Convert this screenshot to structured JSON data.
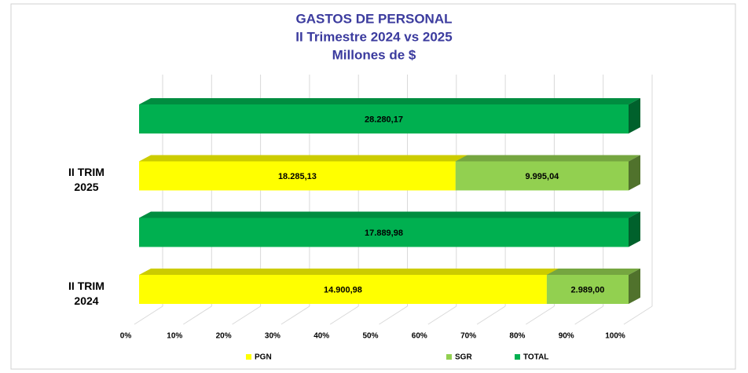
{
  "chart_data": {
    "type": "bar",
    "orientation": "horizontal",
    "stacked": "percent",
    "title": "GASTOS DE PERSONAL",
    "subtitle": [
      "II Trimestre 2024 vs 2025",
      "Millones de $"
    ],
    "categories": [
      "II TRIM 2025",
      "II TRIM 2024"
    ],
    "series": [
      {
        "name": "PGN",
        "color": "#ffff00",
        "values": [
          18285.13,
          14900.98
        ],
        "value_labels": [
          "18.285,13",
          "14.900,98"
        ]
      },
      {
        "name": "SGR",
        "color": "#92d050",
        "values": [
          9995.04,
          2989.0
        ],
        "value_labels": [
          "9.995,04",
          "2.989,00"
        ]
      },
      {
        "name": "TOTAL",
        "color": "#00b050",
        "values": [
          28280.17,
          17889.98
        ],
        "value_labels": [
          "28.280,17",
          "17.889,98"
        ]
      }
    ],
    "xlim": [
      0,
      100
    ],
    "xticks": [
      {
        "value": 0,
        "label": "0%"
      },
      {
        "value": 10,
        "label": "10%"
      },
      {
        "value": 20,
        "label": "20%"
      },
      {
        "value": 30,
        "label": "30%"
      },
      {
        "value": 40,
        "label": "40%"
      },
      {
        "value": 50,
        "label": "50%"
      },
      {
        "value": 60,
        "label": "60%"
      },
      {
        "value": 70,
        "label": "70%"
      },
      {
        "value": 80,
        "label": "80%"
      },
      {
        "value": 90,
        "label": "90%"
      },
      {
        "value": 100,
        "label": "100%"
      }
    ],
    "grid": true,
    "legend": "bottom"
  }
}
